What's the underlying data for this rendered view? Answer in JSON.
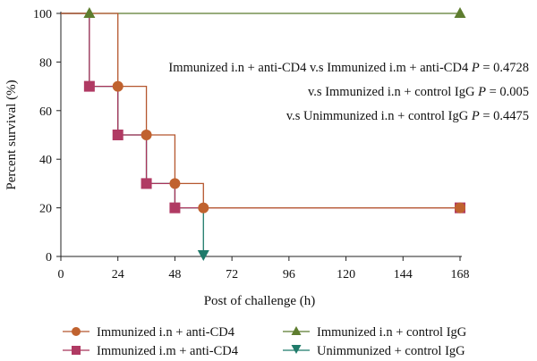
{
  "chart_data": {
    "type": "line",
    "step": true,
    "xlabel": "Post of challenge (h)",
    "ylabel": "Percent survival (%)",
    "xlim": [
      0,
      168
    ],
    "ylim": [
      0,
      100
    ],
    "xticks": [
      0,
      24,
      48,
      72,
      96,
      120,
      144,
      168
    ],
    "yticks": [
      0,
      20,
      40,
      60,
      80,
      100
    ],
    "grid": false,
    "series": [
      {
        "name": "Immunized i.n + anti-CD4",
        "color": "#b5562e",
        "marker_color": "#c0622f",
        "marker": "circle",
        "x": [
          0,
          24,
          36,
          48,
          60,
          168
        ],
        "y": [
          100,
          70,
          50,
          30,
          20,
          20
        ],
        "markers": [
          [
            24,
            70
          ],
          [
            36,
            50
          ],
          [
            48,
            30
          ],
          [
            60,
            20
          ],
          [
            168,
            20
          ]
        ]
      },
      {
        "name": "Immunized i.m + anti-CD4",
        "color": "#a8345a",
        "marker_color": "#b03a63",
        "marker": "square",
        "x": [
          0,
          12,
          24,
          36,
          48,
          168
        ],
        "y": [
          100,
          70,
          50,
          30,
          20,
          20
        ],
        "markers": [
          [
            12,
            70
          ],
          [
            24,
            50
          ],
          [
            36,
            30
          ],
          [
            48,
            20
          ],
          [
            168,
            20
          ]
        ]
      },
      {
        "name": "Immunized i.n + control IgG",
        "color": "#5a7a2e",
        "marker_color": "#5e7d2f",
        "marker": "triangle-up",
        "x": [
          0,
          168
        ],
        "y": [
          100,
          100
        ],
        "markers": [
          [
            12,
            100
          ],
          [
            168,
            100
          ]
        ]
      },
      {
        "name": "Unimmunized + control IgG",
        "color": "#1f7a6a",
        "marker_color": "#1f7a6a",
        "marker": "triangle-down",
        "x": [
          0,
          12,
          24,
          36,
          48,
          60
        ],
        "y": [
          100,
          70,
          50,
          30,
          20,
          0
        ],
        "markers": [
          [
            60,
            0
          ]
        ]
      }
    ],
    "annotations": [
      {
        "prefix": "Immunized i.n + anti-CD4 v.s Immunized i.m + anti-CD4 ",
        "stat": "P",
        "value": " = 0.4728"
      },
      {
        "prefix": "v.s Immunized i.n + control IgG ",
        "stat": "P",
        "value": " = 0.005"
      },
      {
        "prefix": "v.s Unimmunized i.n + control IgG ",
        "stat": "P",
        "value": " = 0.4475"
      }
    ]
  }
}
